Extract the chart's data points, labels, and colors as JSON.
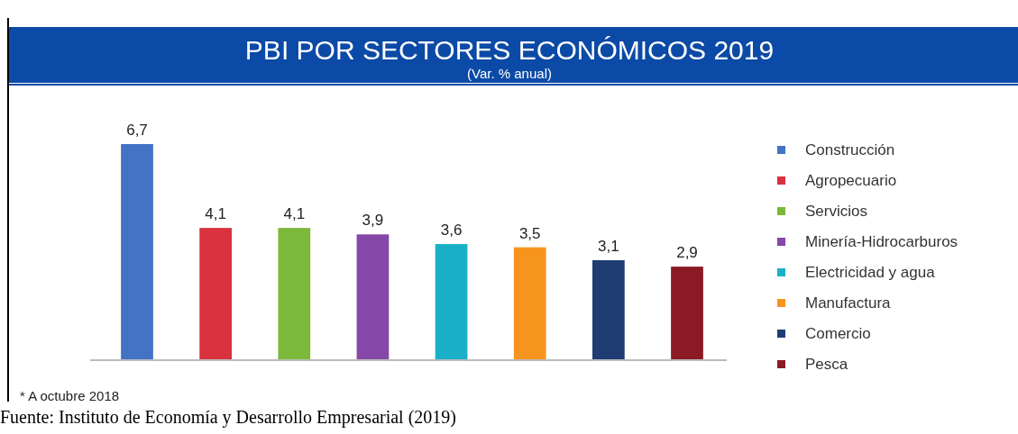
{
  "chart_data": {
    "type": "bar",
    "title": "PBI POR SECTORES ECONÓMICOS 2019",
    "subtitle": "(Var. % anual)",
    "categories": [
      null,
      null,
      null,
      null,
      null,
      null,
      null,
      null
    ],
    "stacked": true,
    "series": [
      {
        "name": "Construcción",
        "color": "#4472c4",
        "values": [
          6.7,
          null,
          null,
          null,
          null,
          null,
          null,
          null
        ],
        "value_labels": [
          "6,7",
          null,
          null,
          null,
          null,
          null,
          null,
          null
        ]
      },
      {
        "name": "Agropecuario",
        "color": "#d9313e",
        "values": [
          null,
          4.1,
          null,
          null,
          null,
          null,
          null,
          null
        ],
        "value_labels": [
          null,
          "4,1",
          null,
          null,
          null,
          null,
          null,
          null
        ]
      },
      {
        "name": "Servicios",
        "color": "#7cb83a",
        "values": [
          null,
          null,
          4.1,
          null,
          null,
          null,
          null,
          null
        ],
        "value_labels": [
          null,
          null,
          "4,1",
          null,
          null,
          null,
          null,
          null
        ]
      },
      {
        "name": "Minería-Hidrocarburos",
        "color": "#8548a8",
        "values": [
          null,
          null,
          null,
          3.9,
          null,
          null,
          null,
          null
        ],
        "value_labels": [
          null,
          null,
          null,
          "3,9",
          null,
          null,
          null,
          null
        ]
      },
      {
        "name": "Electricidad y agua",
        "color": "#1ab0c8",
        "values": [
          null,
          null,
          null,
          null,
          3.6,
          null,
          null,
          null
        ],
        "value_labels": [
          null,
          null,
          null,
          null,
          "3,6",
          null,
          null,
          null
        ]
      },
      {
        "name": "Manufactura",
        "color": "#f7941d",
        "values": [
          null,
          null,
          null,
          null,
          null,
          3.5,
          null,
          null
        ],
        "value_labels": [
          null,
          null,
          null,
          null,
          null,
          "3,5",
          null,
          null
        ]
      },
      {
        "name": "Comercio",
        "color": "#1f3d73",
        "values": [
          null,
          null,
          null,
          null,
          null,
          null,
          3.1,
          null
        ],
        "value_labels": [
          null,
          null,
          null,
          null,
          null,
          null,
          "3,1",
          null
        ]
      },
      {
        "name": "Pesca",
        "color": "#8b1a24",
        "values": [
          null,
          null,
          null,
          null,
          null,
          null,
          null,
          2.9
        ],
        "value_labels": [
          null,
          null,
          null,
          null,
          null,
          null,
          null,
          "2,9"
        ]
      }
    ],
    "legend": "right",
    "annotations": [
      "* A octubre 2018",
      "Fuente: Instituto de Economía y Desarrollo Empresarial (2019)"
    ]
  }
}
